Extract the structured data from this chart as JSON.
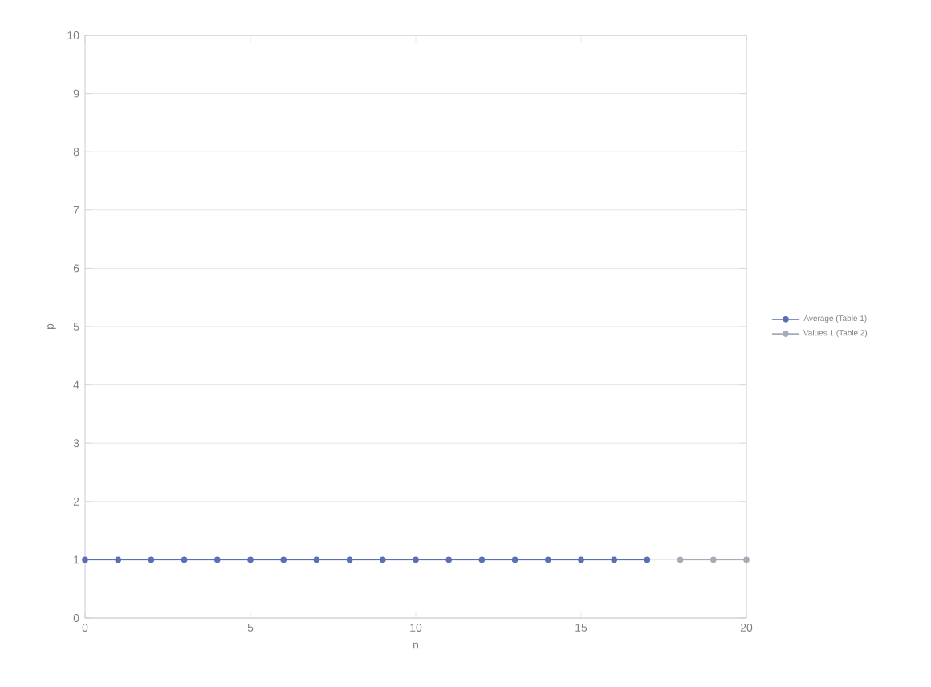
{
  "chart_data": {
    "type": "line",
    "xlabel": "n",
    "ylabel": "p",
    "xlim": [
      0,
      20
    ],
    "xticks": [
      0,
      5,
      10,
      15,
      20
    ],
    "ylim": [
      0,
      10
    ],
    "yticks": [
      0,
      1,
      2,
      3,
      4,
      5,
      6,
      7,
      8,
      9,
      10
    ],
    "grid": "y",
    "legend": "right",
    "marker": "circle",
    "series": [
      {
        "name": "Average (Table 1)",
        "color": "#5a6fb5",
        "x": [
          0,
          1,
          2,
          3,
          4,
          5,
          6,
          7,
          8,
          9,
          10,
          11,
          12,
          13,
          14,
          15,
          16,
          17
        ],
        "values": [
          1,
          1,
          1,
          1,
          1,
          1,
          1,
          1,
          1,
          1,
          1,
          1,
          1,
          1,
          1,
          1,
          1,
          1
        ]
      },
      {
        "name": "Values 1 (Table 2)",
        "color": "#a8aab8",
        "x": [
          18,
          19,
          20
        ],
        "values": [
          1,
          1,
          1
        ]
      }
    ]
  }
}
